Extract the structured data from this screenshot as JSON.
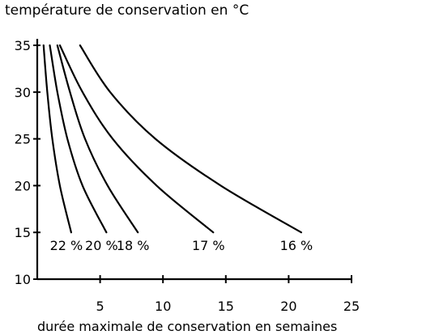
{
  "chart_data": {
    "type": "line",
    "title": "température de conservation en °C",
    "xlabel": "durée maximale de conservation en semaines",
    "ylabel": "",
    "xlim": [
      0,
      25
    ],
    "ylim": [
      10,
      35
    ],
    "x_ticks": [
      5,
      10,
      15,
      20,
      25
    ],
    "y_ticks": [
      10,
      15,
      20,
      25,
      30,
      35
    ],
    "grid": false,
    "series": [
      {
        "name": "22 %",
        "points": [
          [
            0.5,
            35
          ],
          [
            0.8,
            30
          ],
          [
            1.2,
            25
          ],
          [
            1.8,
            20
          ],
          [
            2.7,
            15
          ]
        ]
      },
      {
        "name": "20 %",
        "points": [
          [
            1.0,
            35
          ],
          [
            1.6,
            30
          ],
          [
            2.4,
            25
          ],
          [
            3.6,
            20
          ],
          [
            5.5,
            15
          ]
        ]
      },
      {
        "name": "18 %",
        "points": [
          [
            1.6,
            35
          ],
          [
            2.6,
            30
          ],
          [
            3.8,
            25
          ],
          [
            5.6,
            20
          ],
          [
            8.0,
            15
          ]
        ]
      },
      {
        "name": "17 %",
        "points": [
          [
            1.8,
            35
          ],
          [
            3.6,
            30
          ],
          [
            6.0,
            25
          ],
          [
            9.5,
            20
          ],
          [
            14.0,
            15
          ]
        ]
      },
      {
        "name": "16 %",
        "points": [
          [
            3.4,
            35
          ],
          [
            5.8,
            30
          ],
          [
            9.4,
            25
          ],
          [
            14.6,
            20
          ],
          [
            21.0,
            15
          ]
        ]
      }
    ]
  }
}
